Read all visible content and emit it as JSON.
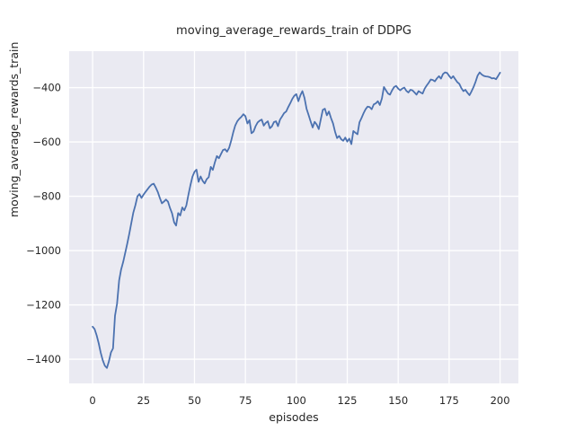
{
  "figure": {
    "background_color": "#ffffff",
    "axes_background_color": "#eaeaf2",
    "grid_color": "#ffffff",
    "text_color": "#262626"
  },
  "chart_data": {
    "type": "line",
    "title": "moving_average_rewards_train of DDPG",
    "xlabel": "episodes",
    "ylabel": "moving_average_rewards_train",
    "xlim": [
      -11.5,
      209
    ],
    "ylim": [
      -1489,
      -266
    ],
    "grid": true,
    "legend_position": null,
    "x_ticks": [
      0,
      25,
      50,
      75,
      100,
      125,
      150,
      175,
      200
    ],
    "x_tick_labels": [
      "0",
      "25",
      "50",
      "75",
      "100",
      "125",
      "150",
      "175",
      "200"
    ],
    "y_ticks": [
      -400,
      -600,
      -800,
      -1000,
      -1200,
      -1400
    ],
    "y_tick_labels": [
      "−400",
      "−600",
      "−800",
      "−1000",
      "−1200",
      "−1400"
    ],
    "line_color": "#4c72b0",
    "line_width": 1.8,
    "series": [
      {
        "name": "moving_average_rewards_train",
        "points": [
          [
            0,
            -1280
          ],
          [
            1,
            -1289
          ],
          [
            2,
            -1312
          ],
          [
            3,
            -1342
          ],
          [
            4,
            -1376
          ],
          [
            5,
            -1404
          ],
          [
            6,
            -1424
          ],
          [
            7,
            -1432
          ],
          [
            8,
            -1408
          ],
          [
            9,
            -1375
          ],
          [
            10,
            -1360
          ],
          [
            11,
            -1240
          ],
          [
            12,
            -1195
          ],
          [
            13,
            -1110
          ],
          [
            14,
            -1070
          ],
          [
            15,
            -1042
          ],
          [
            16,
            -1008
          ],
          [
            17,
            -975
          ],
          [
            18,
            -938
          ],
          [
            19,
            -898
          ],
          [
            20,
            -860
          ],
          [
            21,
            -833
          ],
          [
            22,
            -800
          ],
          [
            23,
            -792
          ],
          [
            24,
            -806
          ],
          [
            25,
            -794
          ],
          [
            26,
            -784
          ],
          [
            27,
            -774
          ],
          [
            28,
            -764
          ],
          [
            29,
            -757
          ],
          [
            30,
            -754
          ],
          [
            31,
            -768
          ],
          [
            32,
            -784
          ],
          [
            33,
            -806
          ],
          [
            34,
            -826
          ],
          [
            35,
            -820
          ],
          [
            36,
            -812
          ],
          [
            37,
            -820
          ],
          [
            38,
            -843
          ],
          [
            39,
            -863
          ],
          [
            40,
            -896
          ],
          [
            41,
            -908
          ],
          [
            42,
            -862
          ],
          [
            43,
            -871
          ],
          [
            44,
            -841
          ],
          [
            45,
            -852
          ],
          [
            46,
            -834
          ],
          [
            47,
            -795
          ],
          [
            48,
            -760
          ],
          [
            49,
            -728
          ],
          [
            50,
            -710
          ],
          [
            51,
            -702
          ],
          [
            52,
            -747
          ],
          [
            53,
            -727
          ],
          [
            54,
            -743
          ],
          [
            55,
            -753
          ],
          [
            56,
            -737
          ],
          [
            57,
            -730
          ],
          [
            58,
            -692
          ],
          [
            59,
            -703
          ],
          [
            60,
            -676
          ],
          [
            61,
            -652
          ],
          [
            62,
            -660
          ],
          [
            63,
            -645
          ],
          [
            64,
            -630
          ],
          [
            65,
            -627
          ],
          [
            66,
            -636
          ],
          [
            67,
            -622
          ],
          [
            68,
            -596
          ],
          [
            69,
            -566
          ],
          [
            70,
            -540
          ],
          [
            71,
            -524
          ],
          [
            72,
            -515
          ],
          [
            73,
            -508
          ],
          [
            74,
            -498
          ],
          [
            75,
            -505
          ],
          [
            76,
            -532
          ],
          [
            77,
            -520
          ],
          [
            78,
            -568
          ],
          [
            79,
            -562
          ],
          [
            80,
            -542
          ],
          [
            81,
            -528
          ],
          [
            82,
            -522
          ],
          [
            83,
            -518
          ],
          [
            84,
            -540
          ],
          [
            85,
            -530
          ],
          [
            86,
            -524
          ],
          [
            87,
            -550
          ],
          [
            88,
            -543
          ],
          [
            89,
            -527
          ],
          [
            90,
            -524
          ],
          [
            91,
            -542
          ],
          [
            92,
            -518
          ],
          [
            93,
            -506
          ],
          [
            94,
            -494
          ],
          [
            95,
            -488
          ],
          [
            96,
            -472
          ],
          [
            97,
            -458
          ],
          [
            98,
            -442
          ],
          [
            99,
            -430
          ],
          [
            100,
            -424
          ],
          [
            101,
            -450
          ],
          [
            102,
            -428
          ],
          [
            103,
            -413
          ],
          [
            104,
            -438
          ],
          [
            105,
            -478
          ],
          [
            106,
            -500
          ],
          [
            107,
            -524
          ],
          [
            108,
            -547
          ],
          [
            109,
            -526
          ],
          [
            110,
            -536
          ],
          [
            111,
            -553
          ],
          [
            112,
            -518
          ],
          [
            113,
            -482
          ],
          [
            114,
            -478
          ],
          [
            115,
            -502
          ],
          [
            116,
            -488
          ],
          [
            117,
            -512
          ],
          [
            118,
            -532
          ],
          [
            119,
            -562
          ],
          [
            120,
            -586
          ],
          [
            121,
            -578
          ],
          [
            122,
            -590
          ],
          [
            123,
            -596
          ],
          [
            124,
            -584
          ],
          [
            125,
            -599
          ],
          [
            126,
            -588
          ],
          [
            127,
            -608
          ],
          [
            128,
            -560
          ],
          [
            129,
            -566
          ],
          [
            130,
            -572
          ],
          [
            131,
            -528
          ],
          [
            132,
            -512
          ],
          [
            133,
            -494
          ],
          [
            134,
            -480
          ],
          [
            135,
            -470
          ],
          [
            136,
            -472
          ],
          [
            137,
            -480
          ],
          [
            138,
            -462
          ],
          [
            139,
            -458
          ],
          [
            140,
            -450
          ],
          [
            141,
            -464
          ],
          [
            142,
            -440
          ],
          [
            143,
            -398
          ],
          [
            144,
            -410
          ],
          [
            145,
            -422
          ],
          [
            146,
            -426
          ],
          [
            147,
            -410
          ],
          [
            148,
            -398
          ],
          [
            149,
            -394
          ],
          [
            150,
            -404
          ],
          [
            151,
            -410
          ],
          [
            152,
            -404
          ],
          [
            153,
            -400
          ],
          [
            154,
            -412
          ],
          [
            155,
            -418
          ],
          [
            156,
            -408
          ],
          [
            157,
            -410
          ],
          [
            158,
            -418
          ],
          [
            159,
            -426
          ],
          [
            160,
            -413
          ],
          [
            161,
            -418
          ],
          [
            162,
            -422
          ],
          [
            163,
            -404
          ],
          [
            164,
            -392
          ],
          [
            165,
            -382
          ],
          [
            166,
            -370
          ],
          [
            167,
            -372
          ],
          [
            168,
            -377
          ],
          [
            169,
            -366
          ],
          [
            170,
            -358
          ],
          [
            171,
            -367
          ],
          [
            172,
            -350
          ],
          [
            173,
            -344
          ],
          [
            174,
            -346
          ],
          [
            175,
            -357
          ],
          [
            176,
            -366
          ],
          [
            177,
            -358
          ],
          [
            178,
            -369
          ],
          [
            179,
            -380
          ],
          [
            180,
            -386
          ],
          [
            181,
            -402
          ],
          [
            182,
            -413
          ],
          [
            183,
            -408
          ],
          [
            184,
            -419
          ],
          [
            185,
            -428
          ],
          [
            186,
            -414
          ],
          [
            187,
            -398
          ],
          [
            188,
            -378
          ],
          [
            189,
            -356
          ],
          [
            190,
            -344
          ],
          [
            191,
            -352
          ],
          [
            192,
            -357
          ],
          [
            193,
            -359
          ],
          [
            194,
            -360
          ],
          [
            195,
            -362
          ],
          [
            196,
            -366
          ],
          [
            197,
            -365
          ],
          [
            198,
            -369
          ],
          [
            199,
            -358
          ],
          [
            200,
            -345
          ]
        ]
      }
    ]
  }
}
